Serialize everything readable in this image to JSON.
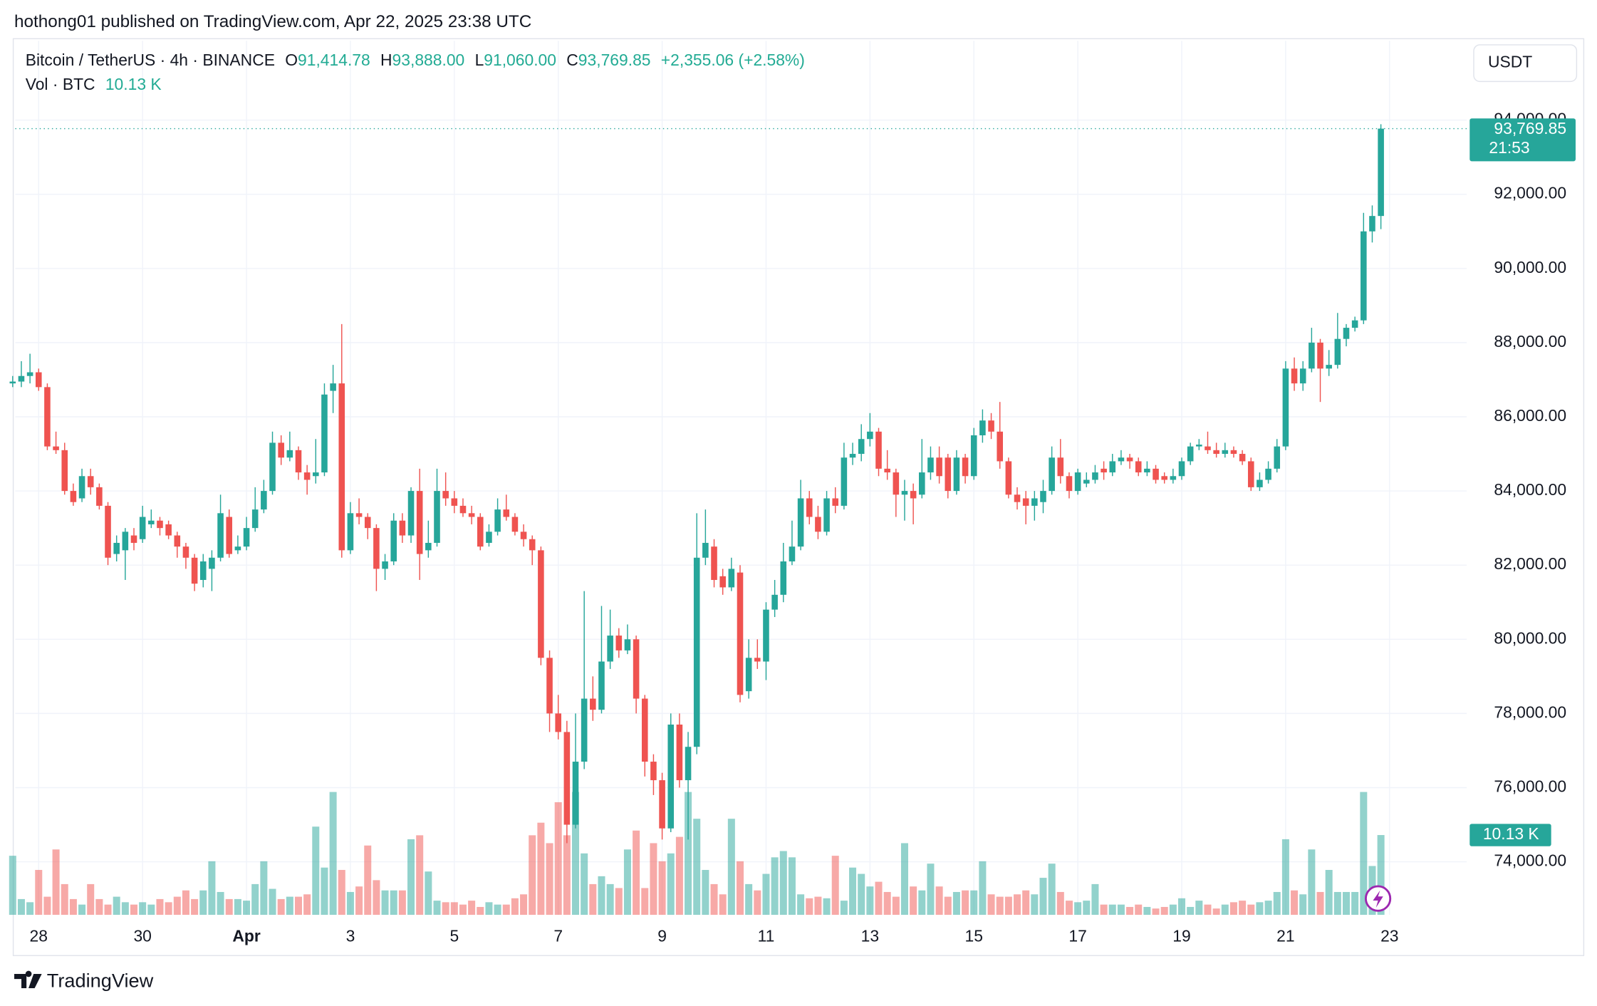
{
  "header": {
    "publisher": "hothong01 published on TradingView.com, Apr 22, 2025 23:38 UTC",
    "footer_logo": "TradingView"
  },
  "chart_data": {
    "type": "candlestick",
    "symbol": "Bitcoin / TetherUS · 4h · BINANCE",
    "legend": {
      "open_label": "O",
      "open": "91,414.78",
      "high_label": "H",
      "high": "93,888.00",
      "low_label": "L",
      "low": "91,060.00",
      "close_label": "C",
      "close": "93,769.85",
      "change": "+2,355.06 (+2.58%)"
    },
    "volume_title": "Vol · BTC",
    "volume_last": "10.13 K",
    "currency": "USDT",
    "countdown": "21:53",
    "up_color": "#26a69a",
    "down_color": "#ef5350",
    "grid": true,
    "xlim": [
      0.3,
      167.9
    ],
    "xticks": [
      {
        "value": 3,
        "label": "28"
      },
      {
        "value": 15,
        "label": "30"
      },
      {
        "value": 27,
        "label": "Apr"
      },
      {
        "value": 39,
        "label": "3"
      },
      {
        "value": 51,
        "label": "5"
      },
      {
        "value": 63,
        "label": "7"
      },
      {
        "value": 75,
        "label": "9"
      },
      {
        "value": 87,
        "label": "11"
      },
      {
        "value": 99,
        "label": "13"
      },
      {
        "value": 111,
        "label": "15"
      },
      {
        "value": 123,
        "label": "17"
      },
      {
        "value": 135,
        "label": "19"
      },
      {
        "value": 147,
        "label": "21"
      },
      {
        "value": 159,
        "label": "23"
      }
    ],
    "ylim": [
      72570,
      96140
    ],
    "yticks": [
      {
        "value": 74000,
        "label": "74,000.00"
      },
      {
        "value": 76000,
        "label": "76,000.00"
      },
      {
        "value": 78000,
        "label": "78,000.00"
      },
      {
        "value": 80000,
        "label": "80,000.00"
      },
      {
        "value": 82000,
        "label": "82,000.00"
      },
      {
        "value": 84000,
        "label": "84,000.00"
      },
      {
        "value": 86000,
        "label": "86,000.00"
      },
      {
        "value": 88000,
        "label": "88,000.00"
      },
      {
        "value": 90000,
        "label": "90,000.00"
      },
      {
        "value": 92000,
        "label": "92,000.00"
      },
      {
        "value": 94000,
        "label": "94,000.00"
      }
    ],
    "volume_ylim": [
      0,
      111
    ],
    "open": [
      86900,
      86950,
      87100,
      87200,
      86800,
      85200,
      85100,
      84000,
      83800,
      84400,
      84100,
      83600,
      82300,
      82400,
      82800,
      82700,
      83100,
      83200,
      83100,
      82800,
      82500,
      82200,
      81600,
      81900,
      82200,
      83300,
      82400,
      82500,
      83000,
      83500,
      84000,
      85300,
      84900,
      85100,
      84500,
      84400,
      84500,
      86700,
      86900,
      82400,
      83400,
      83300,
      83000,
      81900,
      82100,
      83200,
      82800,
      84000,
      82400,
      82600,
      84000,
      83800,
      83600,
      83400,
      83300,
      82600,
      82900,
      83500,
      83300,
      82900,
      82700,
      82400,
      79500,
      78000,
      77500,
      75000,
      76700,
      78400,
      78100,
      79400,
      80100,
      79700,
      80000,
      78400,
      76700,
      76200,
      74900,
      77700,
      76200,
      77100,
      82200,
      82500,
      81700,
      81400,
      81800,
      78600,
      79500,
      79400,
      80800,
      81200,
      82100,
      82500,
      83800,
      83300,
      82900,
      83800,
      83600,
      84900,
      85000,
      85400,
      85600,
      84600,
      84500,
      83900,
      84000,
      83900,
      84500,
      84900,
      84900,
      84000,
      84900,
      84400,
      85500,
      85900,
      85600,
      84800,
      83900,
      83800,
      83600,
      83700,
      84000,
      84900,
      84400,
      84000,
      84200,
      84300,
      84600,
      84500,
      84800,
      84900,
      84800,
      84500,
      84600,
      84400,
      84300,
      84400,
      84800,
      85200,
      85200,
      85100,
      85000,
      85100,
      85000,
      84800,
      84100,
      84300,
      84600,
      85200,
      87300,
      86900,
      87300,
      88000,
      87300,
      87400,
      88100,
      88400,
      88600,
      91000,
      91414.78
    ],
    "high": [
      87100,
      87500,
      87700,
      87300,
      86900,
      85600,
      85300,
      84200,
      84600,
      84600,
      84200,
      83700,
      82800,
      83000,
      83000,
      83600,
      83500,
      83300,
      83200,
      82900,
      82600,
      82300,
      82300,
      82400,
      83900,
      83500,
      82800,
      83300,
      84100,
      84300,
      85600,
      85500,
      85600,
      85200,
      84700,
      85400,
      86900,
      87400,
      88500,
      83700,
      83800,
      83400,
      83100,
      82300,
      83400,
      83400,
      84100,
      84600,
      83200,
      84600,
      84500,
      84000,
      83800,
      83600,
      83400,
      83100,
      83800,
      83900,
      83400,
      83100,
      82800,
      82500,
      79700,
      78500,
      77800,
      78000,
      81300,
      79000,
      80900,
      80800,
      80300,
      80400,
      80100,
      78500,
      76900,
      76400,
      78000,
      78000,
      77500,
      83400,
      83500,
      82700,
      81900,
      82200,
      82000,
      80000,
      80000,
      81000,
      81600,
      82600,
      83200,
      84300,
      84000,
      83600,
      84000,
      84100,
      85300,
      85300,
      85800,
      86100,
      85700,
      85100,
      84600,
      84300,
      84200,
      85400,
      85200,
      85200,
      85000,
      85100,
      85000,
      85700,
      86200,
      86100,
      86400,
      84900,
      84100,
      84000,
      84000,
      84300,
      85200,
      85400,
      84500,
      84600,
      84500,
      84700,
      84800,
      85000,
      85100,
      85000,
      84900,
      84800,
      84700,
      84500,
      84600,
      84900,
      85300,
      85400,
      85600,
      85300,
      85300,
      85200,
      85100,
      84900,
      84500,
      84800,
      85400,
      87500,
      87600,
      87500,
      88400,
      88100,
      87800,
      88800,
      88500,
      88700,
      91500,
      91700,
      93888
    ],
    "low": [
      86800,
      86800,
      86900,
      86700,
      85100,
      85000,
      83900,
      83600,
      83700,
      83900,
      83500,
      82000,
      82100,
      81600,
      82400,
      82600,
      83000,
      82800,
      82700,
      82200,
      81900,
      81300,
      81400,
      81300,
      82100,
      82200,
      82300,
      82400,
      82900,
      83400,
      83900,
      84700,
      84800,
      84300,
      83900,
      84200,
      84400,
      86100,
      82200,
      82300,
      83100,
      82700,
      81300,
      81600,
      82000,
      82600,
      82600,
      81600,
      82200,
      82500,
      83600,
      83400,
      83300,
      83100,
      82400,
      82500,
      82800,
      83200,
      82800,
      82500,
      82000,
      79300,
      77500,
      77300,
      74500,
      74900,
      76500,
      77800,
      78000,
      79200,
      79500,
      79600,
      78000,
      76300,
      75800,
      74600,
      74800,
      76000,
      74600,
      76900,
      82000,
      81400,
      81200,
      81300,
      78300,
      78400,
      79200,
      78900,
      80600,
      81000,
      82000,
      82400,
      83100,
      82700,
      82800,
      83400,
      83500,
      84700,
      84800,
      85200,
      84400,
      84300,
      83300,
      83200,
      83100,
      83800,
      84300,
      84200,
      83800,
      83900,
      84200,
      84300,
      85300,
      85400,
      84600,
      83800,
      83500,
      83100,
      83200,
      83400,
      83900,
      84200,
      83800,
      83900,
      84100,
      84200,
      84300,
      84400,
      84700,
      84600,
      84400,
      84400,
      84200,
      84200,
      84200,
      84300,
      84700,
      85100,
      85000,
      84900,
      84900,
      84900,
      84700,
      84000,
      84000,
      84200,
      84500,
      85100,
      86700,
      86700,
      87200,
      86400,
      87100,
      87300,
      87900,
      88300,
      88500,
      90700,
      91060
    ],
    "close": [
      86950,
      87100,
      87200,
      86800,
      85200,
      85100,
      84000,
      83700,
      84400,
      84100,
      83600,
      82200,
      82600,
      82900,
      82600,
      83300,
      83200,
      83000,
      82800,
      82500,
      82200,
      81500,
      82100,
      82200,
      83400,
      82300,
      82500,
      83000,
      83500,
      84000,
      85300,
      84900,
      85100,
      84500,
      84300,
      84500,
      86600,
      86900,
      82400,
      83400,
      83300,
      83000,
      81900,
      82100,
      83200,
      82800,
      84000,
      82300,
      82600,
      84000,
      83800,
      83600,
      83400,
      83300,
      82500,
      82900,
      83500,
      83300,
      82900,
      82700,
      82400,
      79500,
      78000,
      77500,
      75000,
      76700,
      78400,
      78100,
      79400,
      80100,
      79700,
      80000,
      78400,
      76700,
      76200,
      74900,
      77700,
      76200,
      77100,
      82200,
      82600,
      81600,
      81400,
      81900,
      78500,
      79500,
      79400,
      80800,
      81200,
      82100,
      82500,
      83800,
      83300,
      82900,
      83800,
      83600,
      84900,
      85000,
      85400,
      85600,
      84600,
      84500,
      83900,
      84000,
      83800,
      84500,
      84900,
      84400,
      84000,
      84900,
      84400,
      85500,
      85900,
      85600,
      84800,
      83900,
      83700,
      83600,
      83800,
      84000,
      84900,
      84400,
      84000,
      84500,
      84300,
      84500,
      84500,
      84800,
      84900,
      84800,
      84500,
      84600,
      84300,
      84300,
      84400,
      84800,
      85200,
      85250,
      85100,
      85000,
      85100,
      85000,
      84800,
      84100,
      84300,
      84600,
      85200,
      87300,
      86900,
      87300,
      88000,
      87300,
      87400,
      88100,
      88400,
      88600,
      91000,
      91414.78,
      93769.85
    ],
    "volume": [
      7.5,
      2,
      1.6,
      5.7,
      2.3,
      8.3,
      3.9,
      2,
      1.3,
      3.9,
      2,
      1.3,
      2.3,
      1.6,
      1.3,
      1.6,
      1.3,
      2,
      1.6,
      2.3,
      3.1,
      2,
      3.1,
      6.8,
      2.9,
      2,
      2,
      1.8,
      3.9,
      6.8,
      3.3,
      2,
      2.3,
      2.3,
      2.6,
      11.2,
      6,
      15.6,
      5.7,
      2.9,
      3.6,
      8.8,
      4.4,
      3.1,
      3.1,
      3.1,
      9.6,
      10.1,
      5.5,
      1.8,
      1.6,
      1.6,
      1.3,
      1.8,
      1,
      1.6,
      1.3,
      1.3,
      2.1,
      2.6,
      10.1,
      11.7,
      9.1,
      14.3,
      10.1,
      15.6,
      7.8,
      3.9,
      4.9,
      3.9,
      3.4,
      8.3,
      10.7,
      3.4,
      9.1,
      6.8,
      7.8,
      9.9,
      15.6,
      12.2,
      5.7,
      3.9,
      2.6,
      12.2,
      6.8,
      3.9,
      3.1,
      5.2,
      7.3,
      8.1,
      7.3,
      2.6,
      2.1,
      2.3,
      2.1,
      7.5,
      1.8,
      6,
      5.2,
      3.6,
      4.2,
      2.9,
      2.3,
      9.1,
      3.6,
      3.1,
      6.5,
      3.6,
      2.3,
      2.9,
      3.1,
      3.1,
      6.8,
      2.6,
      2.3,
      2.3,
      2.6,
      3.1,
      2.6,
      4.7,
      6.5,
      2.9,
      1.8,
      1.6,
      1.8,
      3.9,
      1.3,
      1.3,
      1.3,
      1,
      1.3,
      1,
      0.8,
      1,
      1.3,
      2.1,
      1,
      1.8,
      1.3,
      0.8,
      1.3,
      1.6,
      1.8,
      1.3,
      1.6,
      1.8,
      2.9,
      9.6,
      3.1,
      2.6,
      8.3,
      2.9,
      5.7,
      2.9,
      2.9,
      2.9,
      15.6,
      6.2,
      10.13
    ]
  }
}
